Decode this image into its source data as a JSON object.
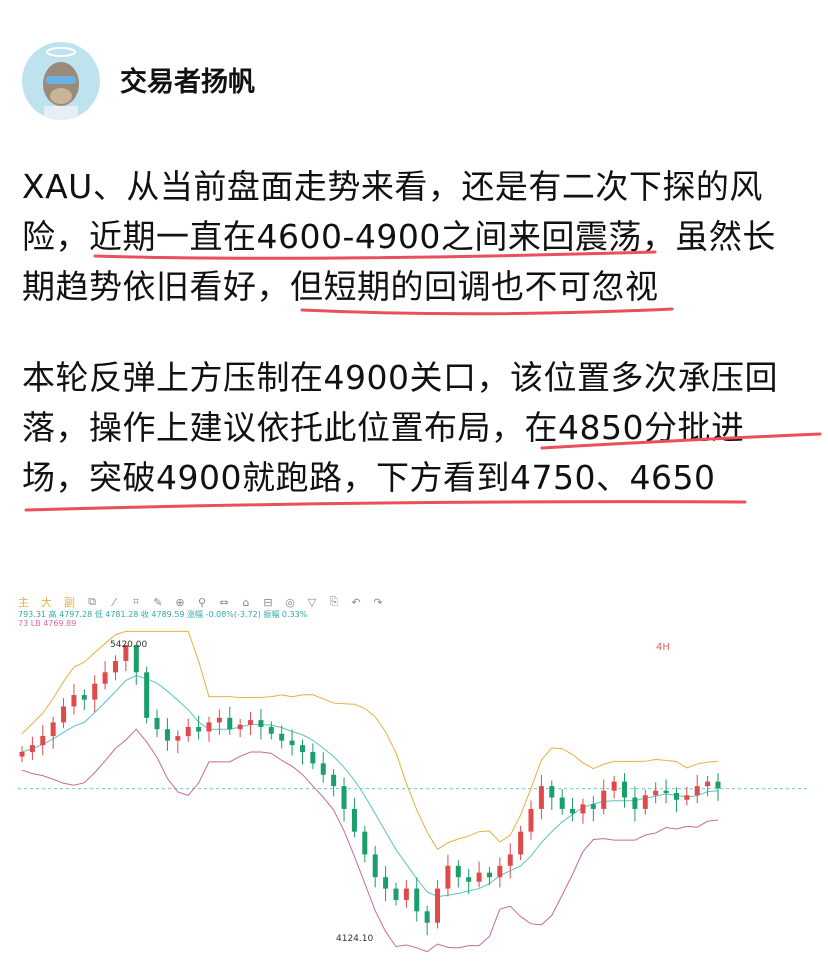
{
  "author": {
    "name": "交易者扬帆",
    "avatar_icon": "cartoon-ape-avatar"
  },
  "post": {
    "p1": {
      "l1": "XAU、从当前盘面走势来看，还是有二次下探的风",
      "l2a": "险，",
      "l2b": "近期一直在4600-4900之间来回震荡，",
      "l2c": "虽然长",
      "l3a": "期趋势依旧看好，",
      "l3b": "但短期的回调也不可忽视"
    },
    "p2": {
      "l1": "本轮反弹上方压制在4900关口，该位置多次承压回",
      "l2a": "落，操作上建议依托此位置布局，",
      "l2b": "在4850分批进",
      "l3": "场，突破4900就跑路，下方看到4750、4650"
    },
    "underline_color": "#e8505b"
  },
  "chart": {
    "toolbar": [
      "主",
      "大",
      "副",
      "⧉",
      "⁄",
      "⌗",
      "✎",
      "⊕",
      "⚲",
      "⇔",
      "⌂",
      "⊟",
      "◎",
      "▽",
      "⎘",
      "↶",
      "↷"
    ],
    "ohlc_text": "793.31 高 4797.28 低 4781.28 收 4789.59 涨幅 -0.08%(-3.72) 振幅 0.33%",
    "ma_text": "73 LB 4769.89",
    "timeframe": "4H",
    "high_label": "5420.00",
    "low_label": "4124.10",
    "colors": {
      "up": "#e04a4a",
      "down": "#1a9e6a",
      "upper_band": "#e8b040",
      "mid_band": "#5bc3c8",
      "lower_band": "#c86a9a"
    }
  },
  "chart_data": {
    "type": "candlestick",
    "ylim": [
      4124.1,
      5420.0
    ],
    "closes": [
      4950,
      4980,
      5020,
      5080,
      5150,
      5200,
      5180,
      5250,
      5300,
      5350,
      5420,
      5300,
      5100,
      5050,
      5000,
      5020,
      5060,
      5040,
      5080,
      5100,
      5050,
      5070,
      5090,
      5060,
      5030,
      5000,
      4980,
      4950,
      4900,
      4850,
      4800,
      4700,
      4600,
      4500,
      4400,
      4350,
      4300,
      4350,
      4250,
      4200,
      4350,
      4450,
      4400,
      4380,
      4420,
      4400,
      4450,
      4500,
      4600,
      4700,
      4800,
      4750,
      4700,
      4680,
      4720,
      4700,
      4780,
      4820,
      4750,
      4700,
      4760,
      4780,
      4770,
      4740,
      4760,
      4800,
      4820,
      4790
    ],
    "annotations": [
      "5420.00",
      "4124.10"
    ]
  }
}
